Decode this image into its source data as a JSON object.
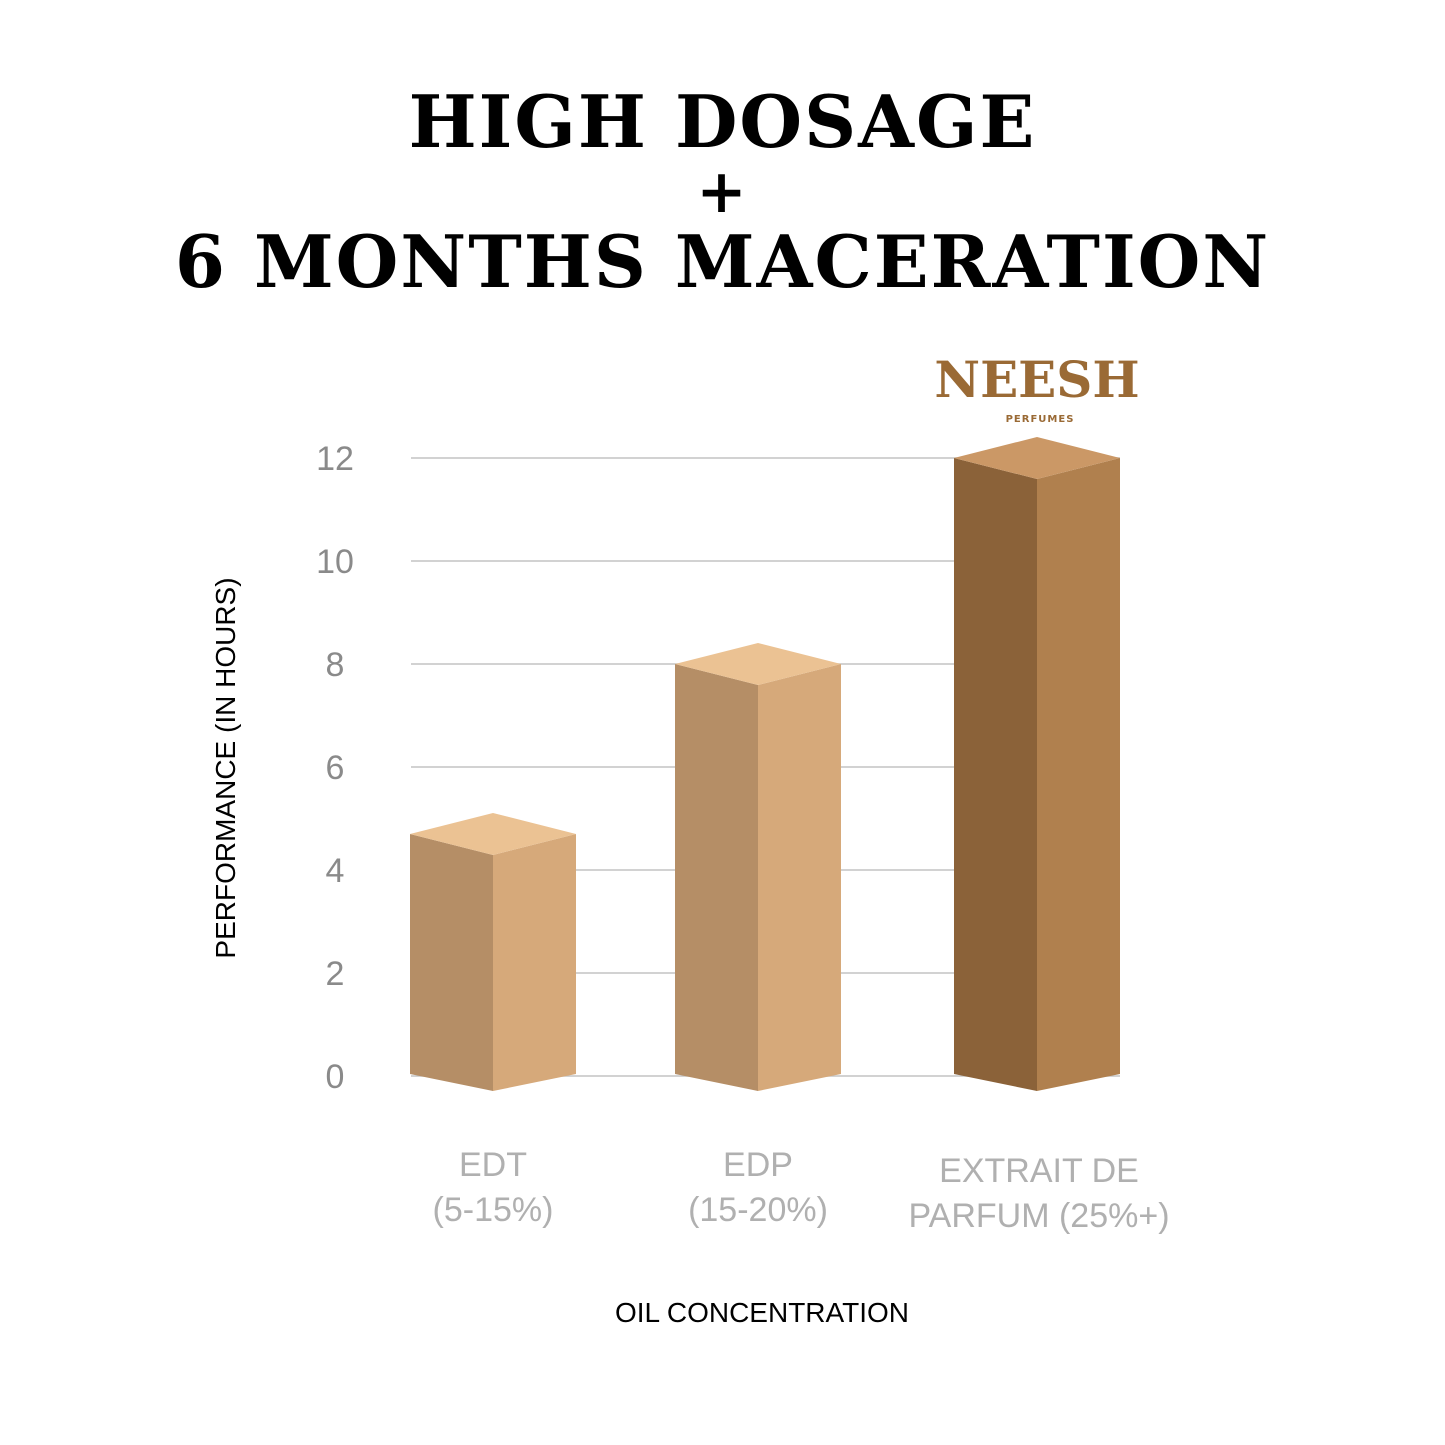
{
  "title_lines": [
    "HIGH DOSAGE",
    "+",
    "6 MONTHS MACERATION"
  ],
  "logo": {
    "brand": "NEESH",
    "sub": "PERFUMES",
    "color": "#9a6a35"
  },
  "chart_data": {
    "type": "bar",
    "style": "3d-box",
    "categories": [
      [
        "EDT",
        "(5-15%)"
      ],
      [
        "EDP",
        "(15-20%)"
      ],
      [
        "EXTRAIT DE",
        "PARFUM (25%+)"
      ]
    ],
    "values": [
      4.7,
      8,
      12
    ],
    "xlabel": "OIL CONCENTRATION",
    "ylabel": "PERFORMANCE (IN HOURS)",
    "ylim": [
      0,
      12
    ],
    "yticks": [
      0,
      2,
      4,
      6,
      8,
      10,
      12
    ],
    "grid": true,
    "bar_colors": [
      {
        "left": "#b58e66",
        "right": "#d6a97a",
        "top": "#ebc293"
      },
      {
        "left": "#b58e66",
        "right": "#d6a97a",
        "top": "#ebc293"
      },
      {
        "left": "#8b6239",
        "right": "#b0804e",
        "top": "#cb9866"
      }
    ],
    "tick_color": "#8a8a8a",
    "category_color": "#b0b0b0"
  }
}
